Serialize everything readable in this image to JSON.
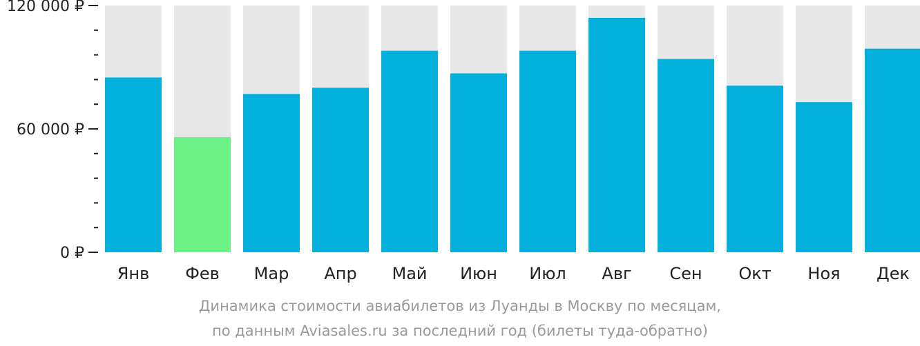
{
  "chart_data": {
    "type": "bar",
    "categories": [
      "Янв",
      "Фев",
      "Мар",
      "Апр",
      "Май",
      "Июн",
      "Июл",
      "Авг",
      "Сен",
      "Окт",
      "Ноя",
      "Дек"
    ],
    "values": [
      85000,
      56000,
      77000,
      80000,
      98000,
      87000,
      98000,
      114000,
      94000,
      81000,
      73000,
      99000
    ],
    "highlight_index": 1,
    "ylim": [
      0,
      120000
    ],
    "yticks": [
      {
        "value": 0,
        "label": "0 ₽"
      },
      {
        "value": 60000,
        "label": "60 000 ₽"
      },
      {
        "value": 120000,
        "label": "120 000 ₽"
      }
    ],
    "minor_tick_step": 12000,
    "colors": {
      "bar": "#03b0dc",
      "highlight": "#6cf187",
      "background_bar": "#e8e8e8",
      "axis": "#222222"
    }
  },
  "caption": {
    "line1": "Динамика стоимости авиабилетов из Луанды в Москву по месяцам,",
    "line2": "по данным Aviasales.ru за последний год (билеты туда-обратно)"
  }
}
